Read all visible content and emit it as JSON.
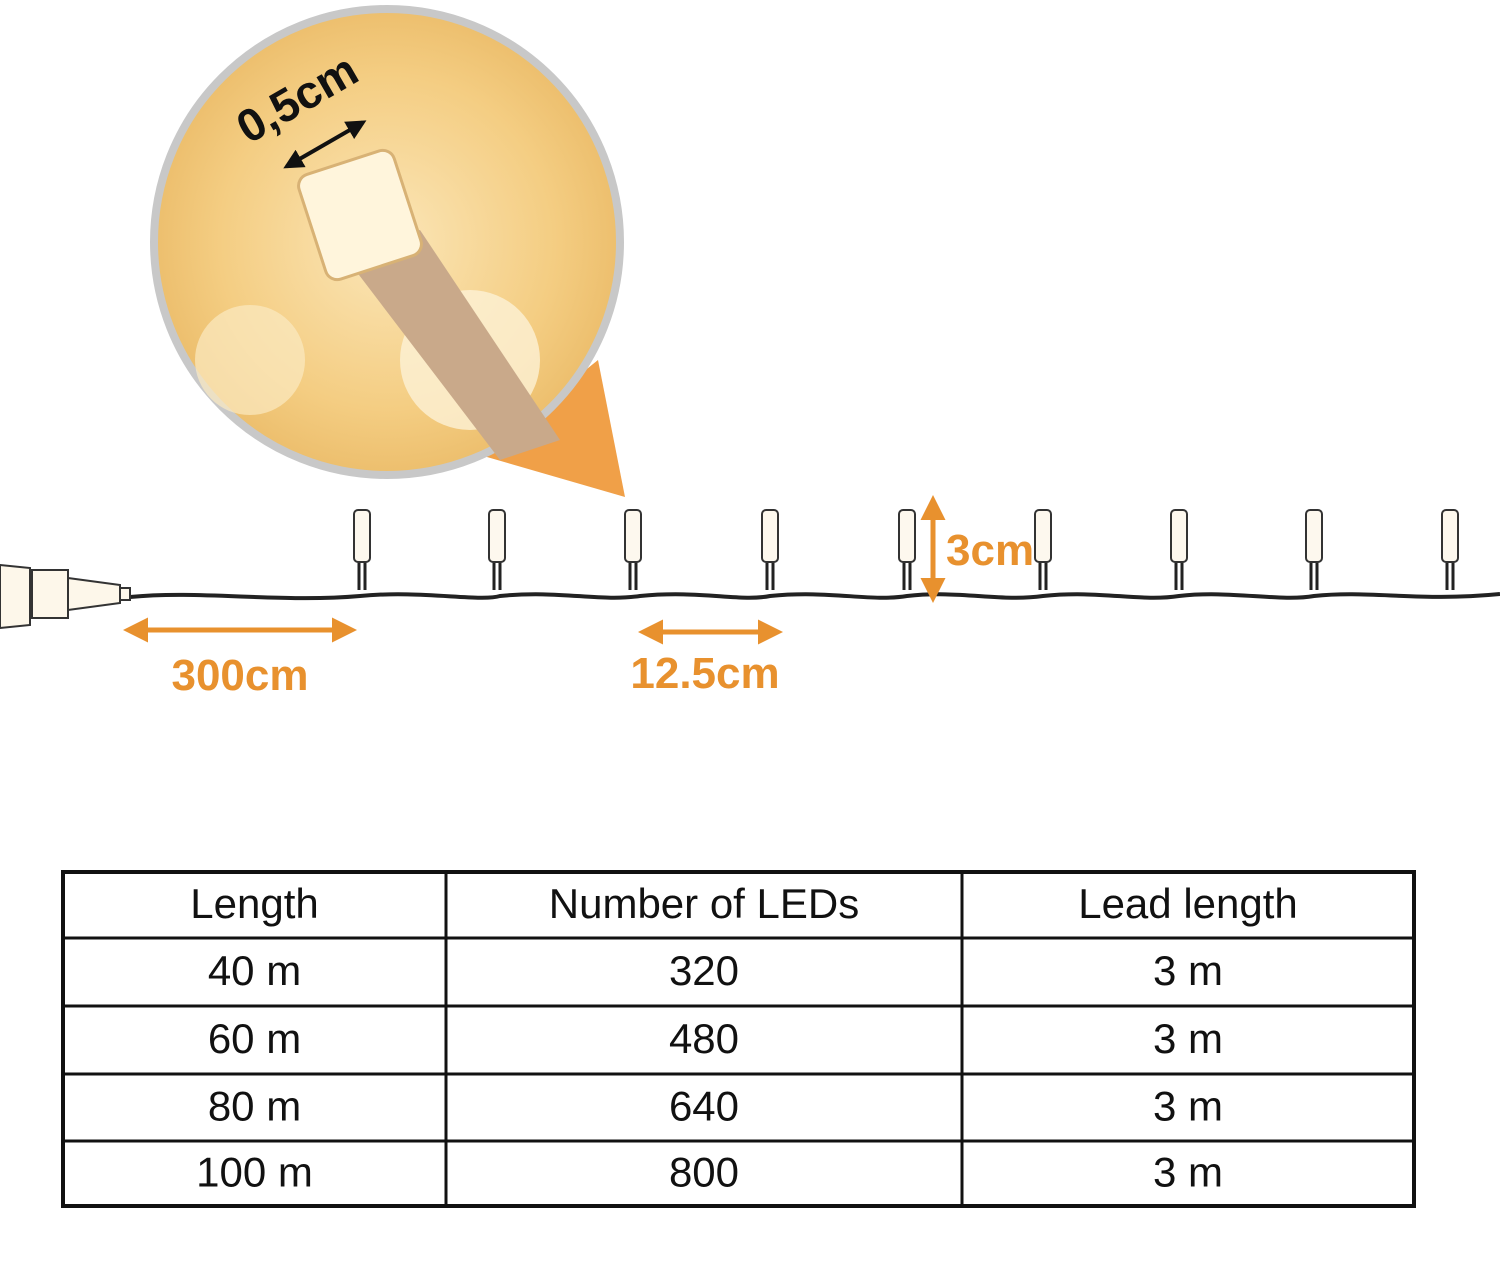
{
  "annotations": {
    "bulb_width": "0,5cm",
    "lead": "300cm",
    "spacing": "12.5cm",
    "height": "3cm"
  },
  "table": {
    "header": [
      "Length",
      "Number of LEDs",
      "Lead length"
    ],
    "rows": [
      [
        "40 m",
        "320",
        "3 m"
      ],
      [
        "60 m",
        "480",
        "3 m"
      ],
      [
        "80 m",
        "640",
        "3 m"
      ],
      [
        "100 m",
        "800",
        "3 m"
      ]
    ]
  }
}
